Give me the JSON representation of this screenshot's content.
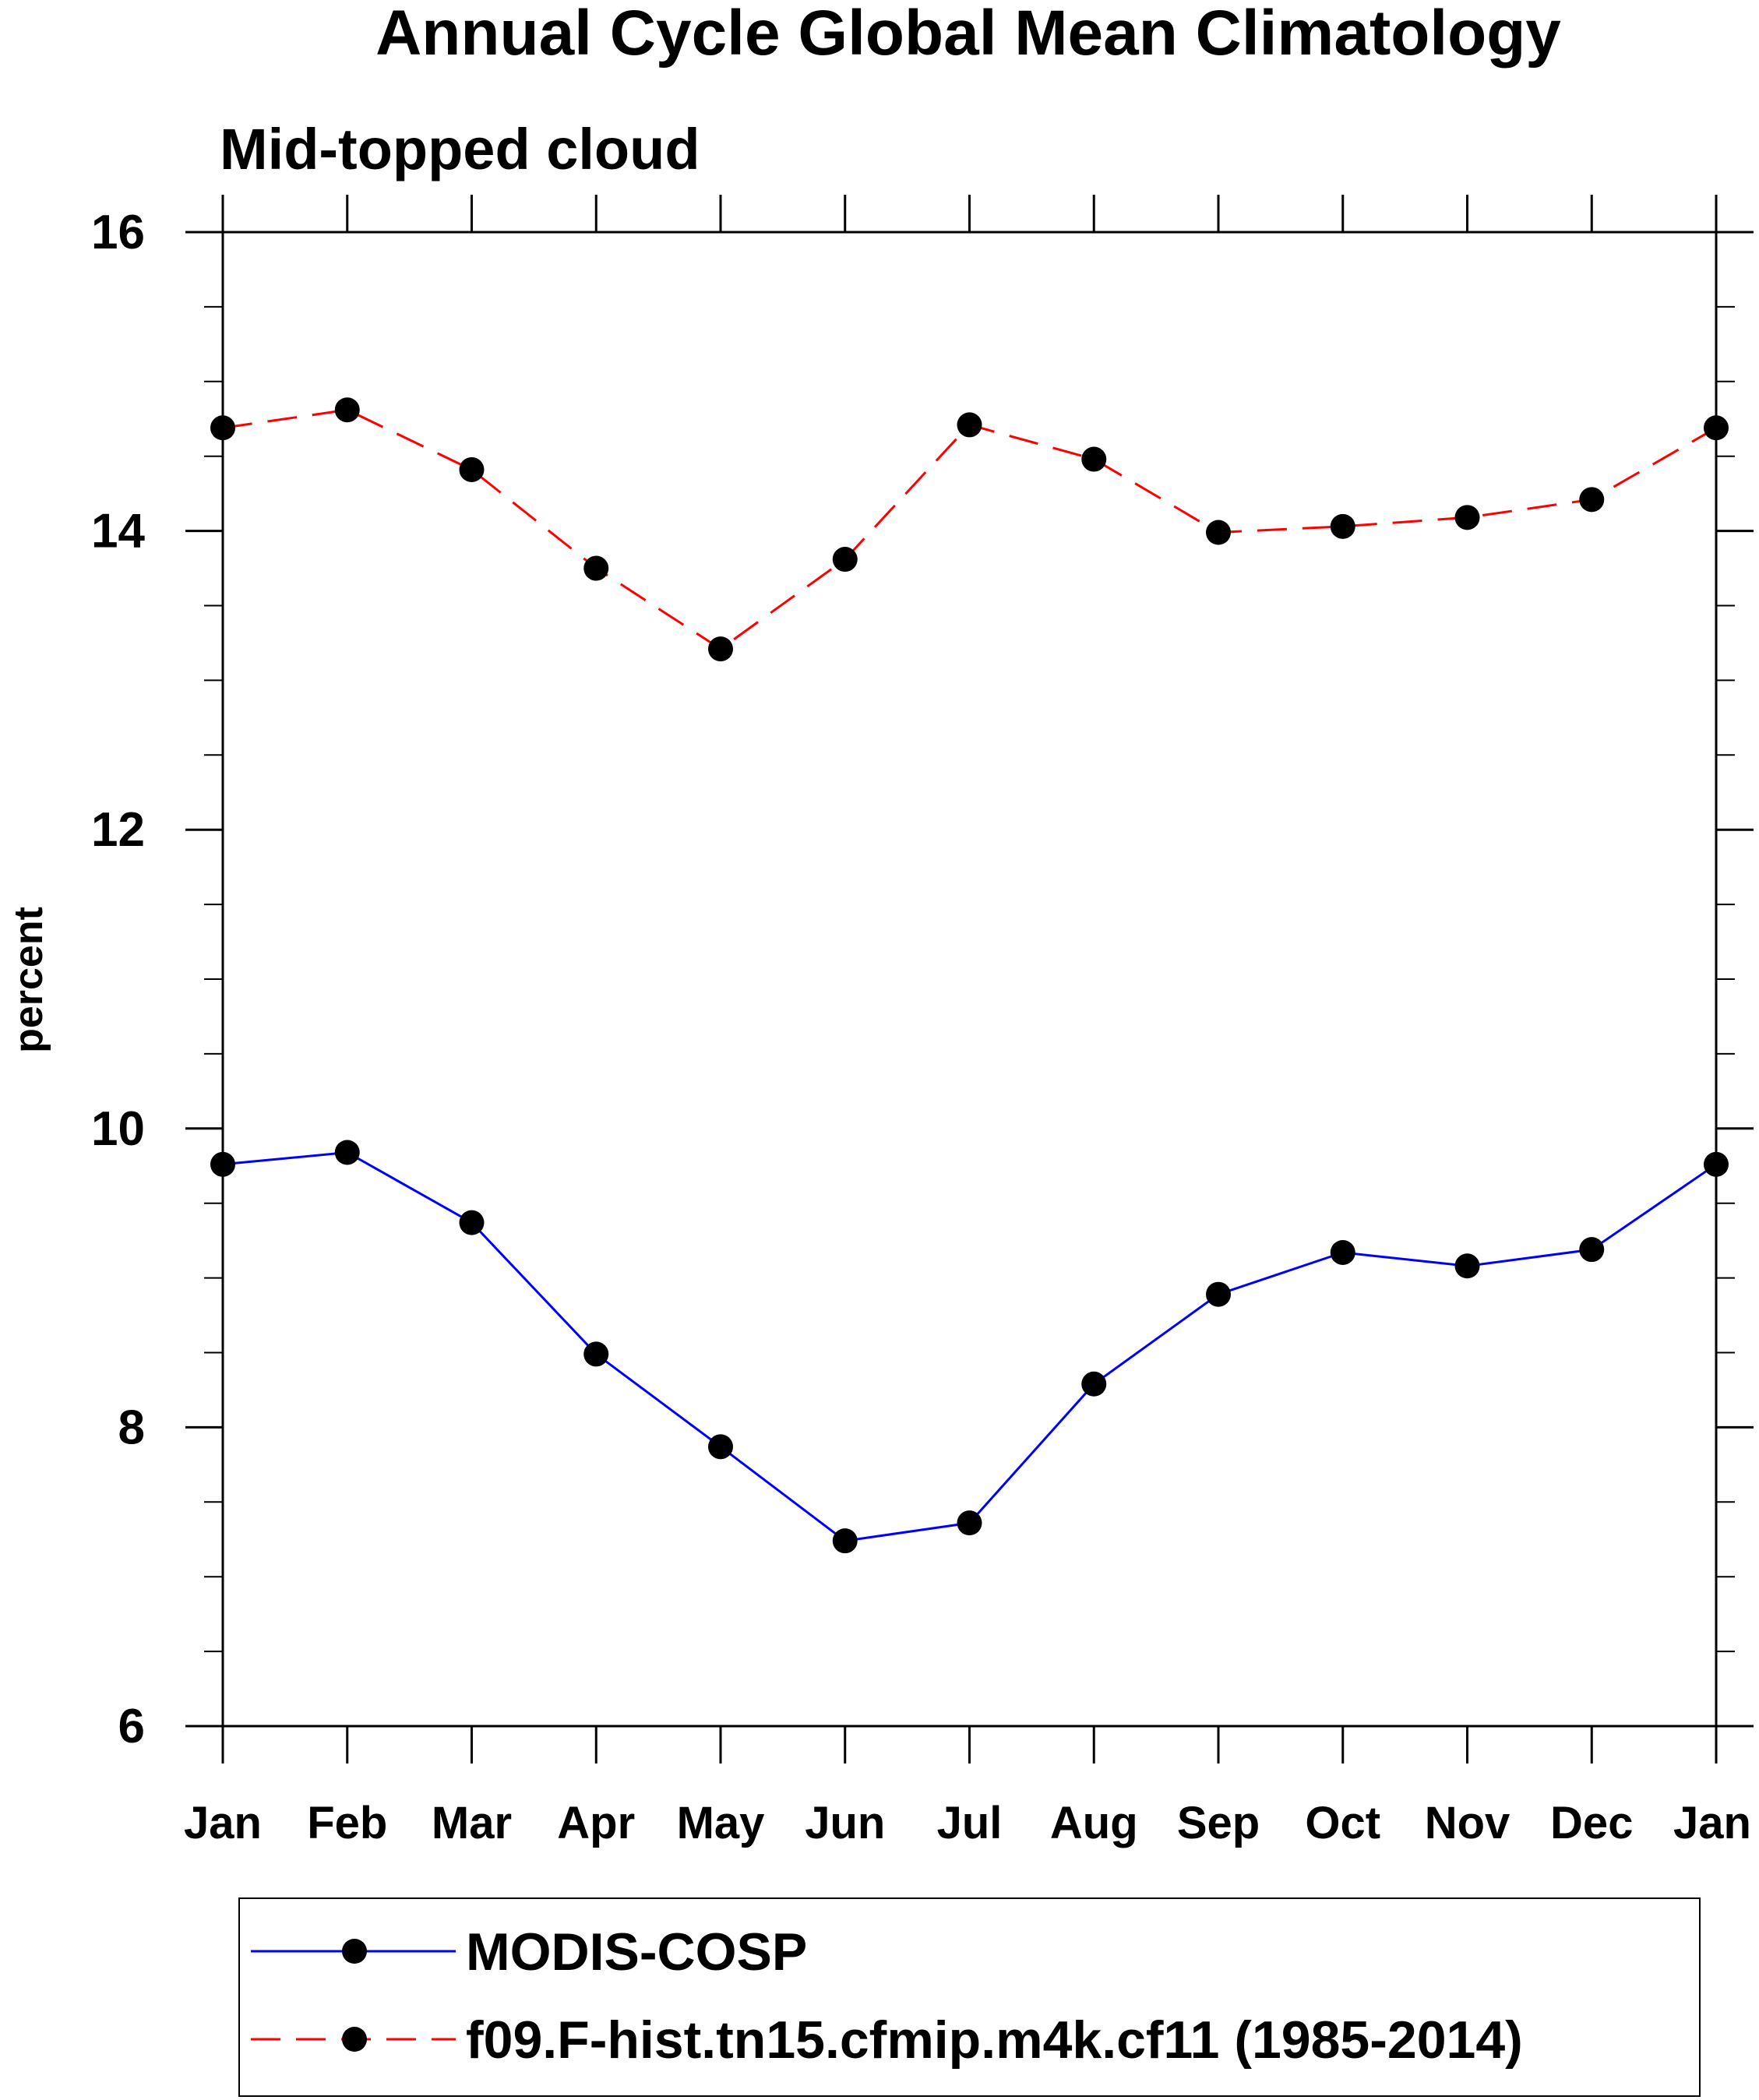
{
  "chart_data": {
    "type": "line",
    "title": "Annual Cycle Global Mean Climatology",
    "subtitle": "Mid-topped cloud",
    "xlabel": "",
    "ylabel": "percent",
    "categories": [
      "Jan",
      "Feb",
      "Mar",
      "Apr",
      "May",
      "Jun",
      "Jul",
      "Aug",
      "Sep",
      "Oct",
      "Nov",
      "Dec",
      "Jan"
    ],
    "ylim": [
      6,
      16
    ],
    "yticks": [
      "6",
      "8",
      "10",
      "12",
      "14",
      "16"
    ],
    "ytick_values": [
      6,
      8,
      10,
      12,
      14,
      16
    ],
    "grid": false,
    "legend_position": "bottom",
    "series": [
      {
        "name": "MODIS-COSP",
        "values": [
          9.76,
          9.84,
          9.37,
          8.49,
          7.87,
          7.24,
          7.36,
          8.29,
          8.89,
          9.17,
          9.08,
          9.19,
          9.76
        ],
        "color": "#0000ff",
        "line_style": "solid",
        "marker": "filled-circle"
      },
      {
        "name": "f09.F-hist.tn15.cfmip.m4k.cf11 (1985-2014)",
        "values": [
          14.69,
          14.81,
          14.41,
          13.75,
          13.21,
          13.81,
          14.71,
          14.48,
          13.99,
          14.03,
          14.09,
          14.21,
          14.69
        ],
        "color": "#ff0000",
        "line_style": "dashed",
        "marker": "filled-circle"
      }
    ]
  }
}
